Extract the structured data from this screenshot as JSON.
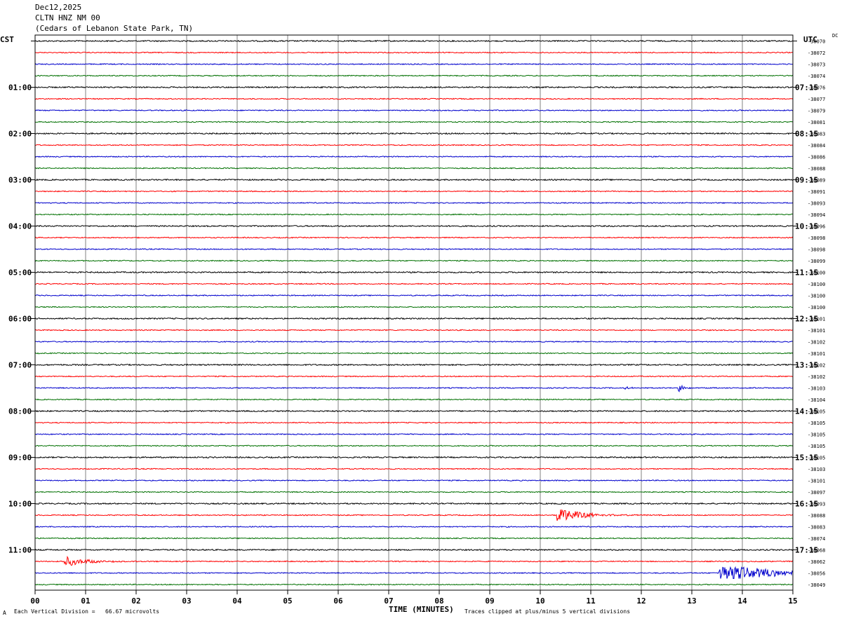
{
  "header": {
    "date": "Dec12,2025",
    "station": "CLTN HNZ NM 00",
    "location": "(Cedars of Lebanon State Park, TN)"
  },
  "left_axis_label": "CST",
  "right_axis_label": "UTC",
  "dc_label": "DC",
  "footer": {
    "scale_note": "Each Vertical Division =   66.67 microvolts",
    "clip_note": "Traces clipped at plus/minus 5 vertical divisions",
    "corner_mark": "A"
  },
  "colors": {
    "c0": "#000000",
    "c1": "#ff0000",
    "c2": "#0000cc",
    "c3": "#007000",
    "grid": "#808080"
  },
  "chart_data": {
    "type": "line",
    "xlabel": "TIME (MINUTES)",
    "xlim": [
      0,
      15
    ],
    "x_ticks": [
      "00",
      "01",
      "02",
      "03",
      "04",
      "05",
      "06",
      "07",
      "08",
      "09",
      "10",
      "11",
      "12",
      "13",
      "14",
      "15"
    ],
    "rows_per_hour": 4,
    "trace_colors": [
      "black",
      "red",
      "blue",
      "green"
    ],
    "left_hour_labels": [
      "01:00",
      "02:00",
      "03:00",
      "04:00",
      "05:00",
      "06:00",
      "07:00",
      "08:00",
      "09:00",
      "10:00",
      "11:00"
    ],
    "right_hour_labels": [
      "07:15",
      "08:15",
      "09:15",
      "10:15",
      "11:15",
      "12:15",
      "13:15",
      "14:15",
      "15:15",
      "16:15",
      "17:15"
    ],
    "dc_offsets": [
      "-38070",
      "-38072",
      "-38073",
      "-38074",
      "-38076",
      "-38077",
      "-38079",
      "-38081",
      "-38083",
      "-38084",
      "-38086",
      "-38088",
      "-38089",
      "-38091",
      "-38093",
      "-38094",
      "-38096",
      "-38098",
      "-38098",
      "-38099",
      "-38100",
      "-38100",
      "-38100",
      "-38100",
      "-38101",
      "-38101",
      "-38102",
      "-38101",
      "-38102",
      "-38102",
      "-38103",
      "-38104",
      "-38105",
      "-38105",
      "-38105",
      "-38105",
      "-38105",
      "-38103",
      "-38101",
      "-38097",
      "-38093",
      "-38088",
      "-38083",
      "-38074",
      "-38068",
      "-38062",
      "-38056",
      "-38049"
    ],
    "events": [
      {
        "row": 41,
        "minute": 10.35,
        "amplitude": 3.5,
        "decay": 0.45
      },
      {
        "row": 45,
        "minute": 0.6,
        "amplitude": 2.2,
        "decay": 0.4
      },
      {
        "row": 46,
        "minute": 13.55,
        "amplitude": 4.5,
        "decay": 0.9
      },
      {
        "row": 30,
        "minute": 12.75,
        "amplitude": 1.6,
        "decay": 0.1
      },
      {
        "row": 30,
        "minute": 11.7,
        "amplitude": 0.6,
        "decay": 0.1
      }
    ]
  }
}
